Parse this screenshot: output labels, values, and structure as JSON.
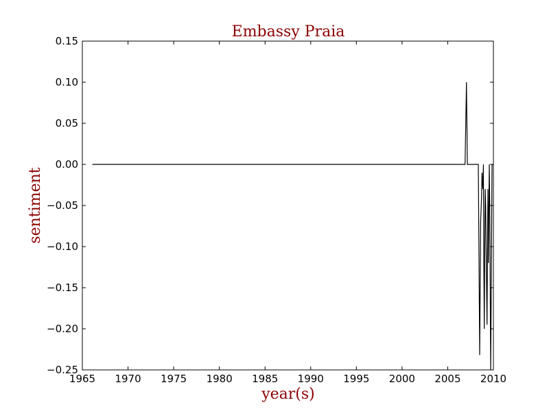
{
  "chart_data": {
    "type": "line",
    "title": "Embassy Praia",
    "xlabel": "year(s)",
    "ylabel": "sentiment",
    "xlim": [
      1965,
      2010
    ],
    "ylim": [
      -0.25,
      0.15
    ],
    "xticks": [
      1965,
      1970,
      1975,
      1980,
      1985,
      1990,
      1995,
      2000,
      2005,
      2010
    ],
    "xtick_labels": [
      "1965",
      "1970",
      "1975",
      "1980",
      "1985",
      "1990",
      "1995",
      "2000",
      "2005",
      "2010"
    ],
    "yticks": [
      0.15,
      0.1,
      0.05,
      0.0,
      -0.05,
      -0.1,
      -0.15,
      -0.2,
      -0.25
    ],
    "ytick_labels": [
      "0.15",
      "0.10",
      "0.05",
      "0.00",
      "−0.05",
      "−0.10",
      "−0.15",
      "−0.20",
      "−0.25"
    ],
    "grid": false,
    "legend": false,
    "line_color": "#000000",
    "title_color": "#8b0000",
    "series": [
      {
        "x": [
          1966.1,
          2006.9,
          2007.05,
          2007.15,
          2007.3,
          2008.2,
          2008.35,
          2008.5,
          2008.6,
          2008.7,
          2008.75,
          2008.85,
          2008.9,
          2008.95,
          2009.0,
          2009.05,
          2009.1,
          2009.15,
          2009.2,
          2009.3,
          2009.4,
          2009.45,
          2009.55,
          2009.6,
          2009.7,
          2009.8,
          2009.85,
          2009.9,
          2010.0
        ],
        "y": [
          0.0,
          0.0,
          0.1,
          0.0,
          0.0,
          0.0,
          0.0,
          -0.232,
          -0.07,
          -0.04,
          -0.01,
          -0.03,
          0.0,
          -0.12,
          -0.2,
          -0.1,
          -0.03,
          -0.05,
          -0.1,
          -0.195,
          -0.03,
          -0.12,
          0.0,
          -0.05,
          -0.25,
          -0.1,
          0.0,
          0.0,
          0.0
        ]
      }
    ]
  }
}
